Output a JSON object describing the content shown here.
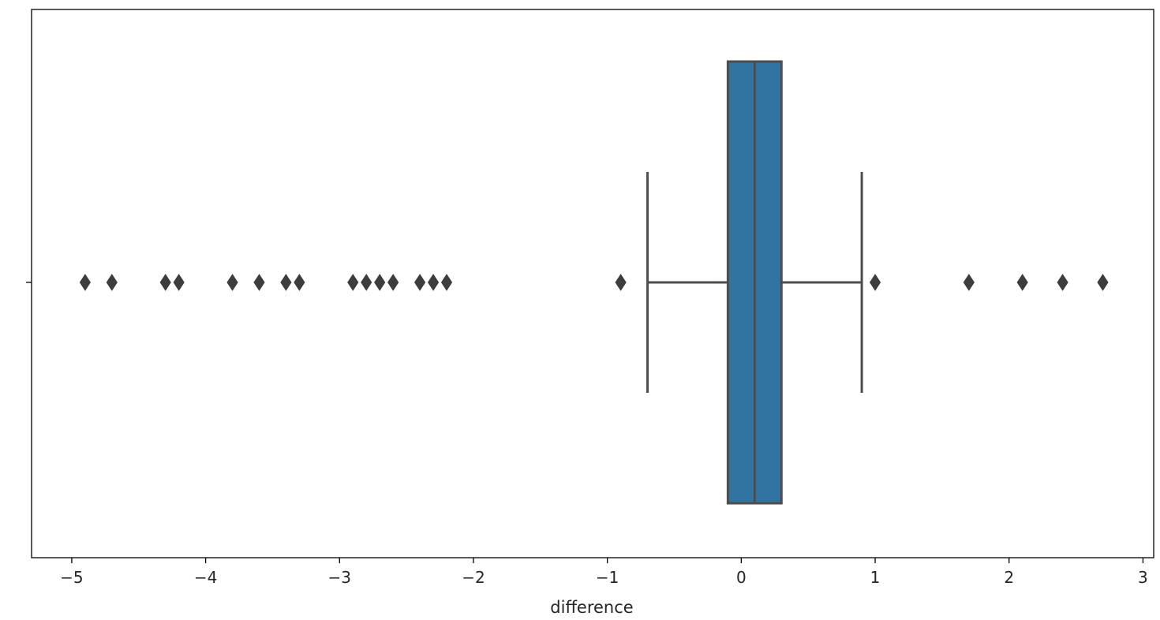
{
  "chart_data": {
    "type": "boxplot",
    "orientation": "horizontal",
    "title": "",
    "xlabel": "difference",
    "ylabel": "",
    "xlim": [
      -5.3,
      3.08
    ],
    "x_ticks": [
      -5,
      -4,
      -3,
      -2,
      -1,
      0,
      1,
      2,
      3
    ],
    "x_tick_labels": [
      "−5",
      "−4",
      "−3",
      "−2",
      "−1",
      "0",
      "1",
      "2",
      "3"
    ],
    "y_ticks": [
      ""
    ],
    "grid": false,
    "legend": "none",
    "box": {
      "whisker_low": -0.7,
      "q1": -0.1,
      "median": 0.1,
      "q3": 0.3,
      "whisker_high": 0.9,
      "fill_color": "#3274a1",
      "line_color": "#4d4d4d"
    },
    "outliers": [
      -4.9,
      -4.7,
      -4.3,
      -4.2,
      -3.8,
      -3.6,
      -3.4,
      -3.3,
      -2.9,
      -2.8,
      -2.7,
      -2.6,
      -2.4,
      -2.3,
      -2.2,
      -0.9,
      1.0,
      1.7,
      2.1,
      2.4,
      2.7
    ],
    "outlier_color": "#3d3d3d"
  }
}
